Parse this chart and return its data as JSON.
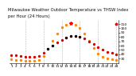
{
  "title": "Milwaukee Weather Outdoor Temperature vs THSW Index",
  "title2": "per Hour (24 Hours)",
  "hours": [
    1,
    2,
    3,
    4,
    5,
    6,
    7,
    8,
    9,
    10,
    11,
    12,
    13,
    14,
    15,
    16,
    17,
    18,
    19,
    20,
    21,
    22,
    23,
    24
  ],
  "temp": [
    38,
    37,
    36,
    35,
    35,
    34,
    36,
    43,
    52,
    61,
    68,
    74,
    79,
    82,
    83,
    81,
    77,
    70,
    63,
    56,
    50,
    46,
    43,
    40
  ],
  "thsw": [
    28,
    27,
    26,
    25,
    25,
    24,
    26,
    36,
    52,
    72,
    88,
    102,
    108,
    112,
    108,
    100,
    88,
    72,
    55,
    42,
    34,
    30,
    28,
    26
  ],
  "temp_color": "#dd0000",
  "thsw_color": "#ff8800",
  "star_color": "#ff0000",
  "black_dot_color": "#111111",
  "bg_color": "#ffffff",
  "ylim_min": 20,
  "ylim_max": 120,
  "yticks": [
    30,
    40,
    50,
    60,
    70,
    80,
    90,
    100,
    110
  ],
  "grid_color": "#999999",
  "grid_hours": [
    4,
    8,
    12,
    16,
    20,
    24
  ],
  "title_fontsize": 3.8,
  "tick_fontsize": 3.2,
  "marker_size": 1.4
}
